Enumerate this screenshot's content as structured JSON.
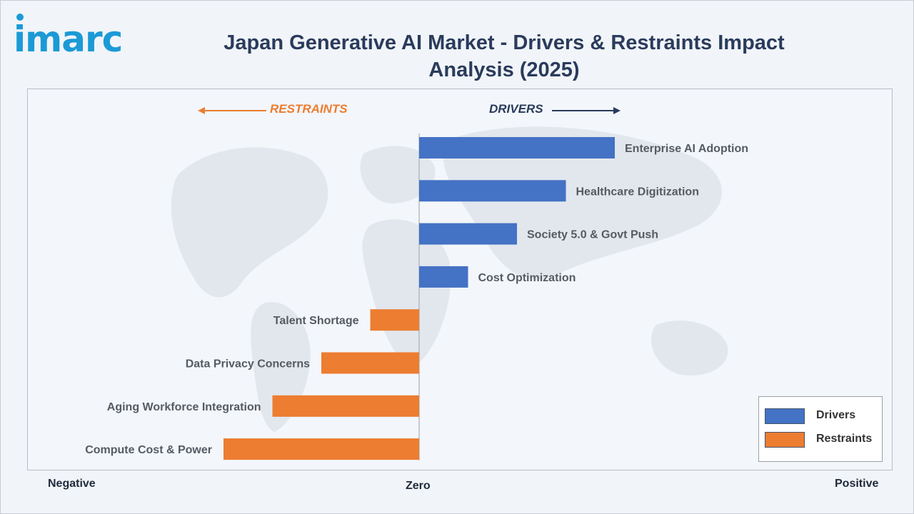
{
  "brand": {
    "logo_text": "imarc",
    "logo_color": "#1b9ad6"
  },
  "header": {
    "title": "Japan Generative AI Market - Drivers & Restraints Impact Analysis (2025)"
  },
  "direction_labels": {
    "restraints": "RESTRAINTS",
    "drivers": "DRIVERS"
  },
  "axis_labels": {
    "negative": "Negative",
    "zero": "Zero",
    "positive": "Positive"
  },
  "legend": [
    {
      "label": "Drivers",
      "color": "#4472c4"
    },
    {
      "label": "Restraints",
      "color": "#ec7d31"
    }
  ],
  "chart_data": {
    "type": "bar",
    "orientation": "horizontal",
    "title": "Japan Generative AI Market - Drivers & Restraints Impact Analysis (2025)",
    "xlim": [
      -4,
      4
    ],
    "grid": false,
    "legend_position": "bottom-right",
    "categories": [
      "Enterprise AI Adoption",
      "Healthcare Digitization",
      "Society 5.0 & Govt Push",
      "Cost Optimization",
      "Talent Shortage",
      "Data Privacy Concerns",
      "Aging Workforce Integration",
      "Compute Cost & Power"
    ],
    "series": [
      {
        "name": "Drivers",
        "color": "#4472c4",
        "values": [
          4,
          3,
          2,
          1,
          null,
          null,
          null,
          null
        ]
      },
      {
        "name": "Restraints",
        "color": "#ec7d31",
        "values": [
          null,
          null,
          null,
          null,
          -1,
          -2,
          -3,
          -4
        ]
      }
    ]
  }
}
